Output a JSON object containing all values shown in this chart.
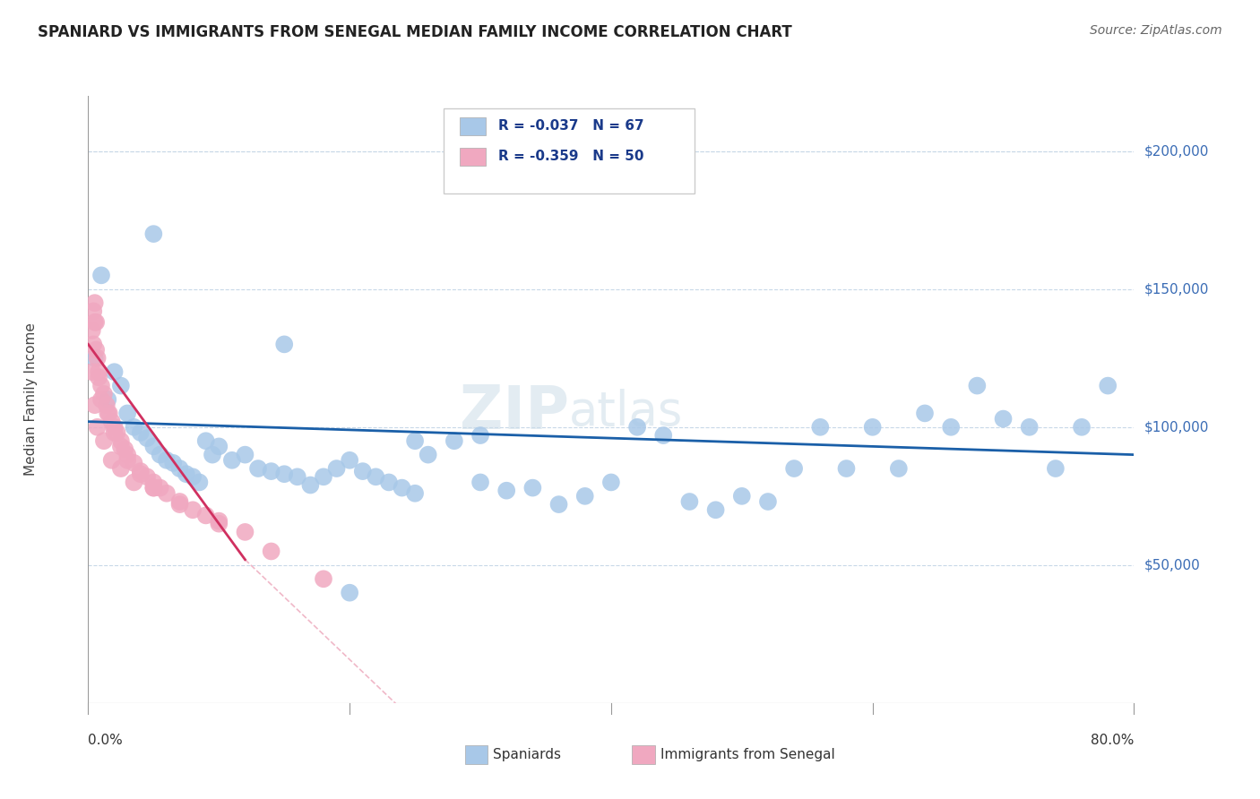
{
  "title": "SPANIARD VS IMMIGRANTS FROM SENEGAL MEDIAN FAMILY INCOME CORRELATION CHART",
  "source": "Source: ZipAtlas.com",
  "ylabel": "Median Family Income",
  "legend_blue_r": "R = -0.037",
  "legend_blue_n": "N = 67",
  "legend_pink_r": "R = -0.359",
  "legend_pink_n": "N = 50",
  "legend_blue_label": "Spaniards",
  "legend_pink_label": "Immigrants from Senegal",
  "yticks": [
    50000,
    100000,
    150000,
    200000
  ],
  "ytick_labels": [
    "$50,000",
    "$100,000",
    "$150,000",
    "$200,000"
  ],
  "watermark_zip": "ZIP",
  "watermark_atlas": "atlas",
  "blue_dot_color": "#a8c8e8",
  "pink_dot_color": "#f0a8c0",
  "blue_line_color": "#1a5fa8",
  "pink_line_color": "#d03060",
  "pink_dash_color": "#f0b8c8",
  "grid_color": "#c8d8e8",
  "background_color": "#ffffff",
  "title_color": "#222222",
  "source_color": "#666666",
  "ytick_color": "#3a6cb5",
  "axis_color": "#999999",
  "legend_border_color": "#cccccc",
  "spaniards_x": [
    0.5,
    1.0,
    1.5,
    2.0,
    2.5,
    3.0,
    3.5,
    4.0,
    4.5,
    5.0,
    5.5,
    6.0,
    6.5,
    7.0,
    7.5,
    8.0,
    8.5,
    9.0,
    9.5,
    10.0,
    11.0,
    12.0,
    13.0,
    14.0,
    15.0,
    16.0,
    17.0,
    18.0,
    19.0,
    20.0,
    21.0,
    22.0,
    23.0,
    24.0,
    25.0,
    26.0,
    28.0,
    30.0,
    32.0,
    34.0,
    36.0,
    38.0,
    40.0,
    42.0,
    44.0,
    46.0,
    48.0,
    50.0,
    52.0,
    54.0,
    56.0,
    58.0,
    60.0,
    62.0,
    64.0,
    66.0,
    68.0,
    70.0,
    72.0,
    74.0,
    76.0,
    78.0,
    5.0,
    15.0,
    20.0,
    25.0,
    30.0
  ],
  "spaniards_y": [
    125000,
    155000,
    110000,
    120000,
    115000,
    105000,
    100000,
    98000,
    96000,
    93000,
    90000,
    88000,
    87000,
    85000,
    83000,
    82000,
    80000,
    95000,
    90000,
    93000,
    88000,
    90000,
    85000,
    84000,
    83000,
    82000,
    79000,
    82000,
    85000,
    88000,
    84000,
    82000,
    80000,
    78000,
    76000,
    90000,
    95000,
    80000,
    77000,
    78000,
    72000,
    75000,
    80000,
    100000,
    97000,
    73000,
    70000,
    75000,
    73000,
    85000,
    100000,
    85000,
    100000,
    85000,
    105000,
    100000,
    115000,
    103000,
    100000,
    85000,
    100000,
    115000,
    170000,
    130000,
    40000,
    95000,
    97000
  ],
  "senegal_x": [
    0.3,
    0.4,
    0.5,
    0.6,
    0.7,
    0.8,
    1.0,
    1.2,
    1.4,
    1.6,
    1.8,
    2.0,
    2.2,
    2.5,
    2.8,
    3.0,
    3.5,
    4.0,
    4.5,
    5.0,
    5.5,
    6.0,
    7.0,
    8.0,
    9.0,
    10.0,
    0.4,
    0.5,
    0.6,
    0.8,
    1.0,
    1.5,
    2.0,
    2.5,
    3.0,
    4.0,
    5.0,
    0.3,
    0.5,
    0.7,
    1.2,
    1.8,
    2.5,
    3.5,
    5.0,
    7.0,
    10.0,
    12.0,
    14.0,
    18.0
  ],
  "senegal_y": [
    135000,
    130000,
    145000,
    138000,
    125000,
    120000,
    115000,
    112000,
    108000,
    105000,
    102000,
    100000,
    98000,
    95000,
    92000,
    90000,
    87000,
    84000,
    82000,
    80000,
    78000,
    76000,
    73000,
    70000,
    68000,
    65000,
    142000,
    138000,
    128000,
    118000,
    110000,
    105000,
    98000,
    93000,
    88000,
    83000,
    78000,
    120000,
    108000,
    100000,
    95000,
    88000,
    85000,
    80000,
    78000,
    72000,
    66000,
    62000,
    55000,
    45000
  ]
}
